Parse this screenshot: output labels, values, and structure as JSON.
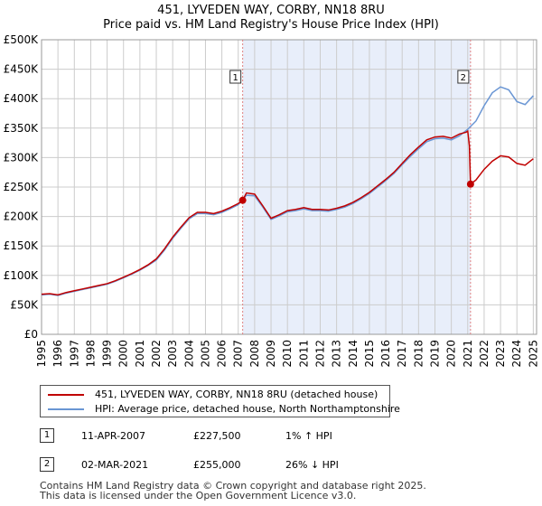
{
  "header": {
    "title": "451, LYVEDEN WAY, CORBY, NN18 8RU",
    "subtitle": "Price paid vs. HM Land Registry's House Price Index (HPI)"
  },
  "colors": {
    "property": "#c00000",
    "hpi": "#6a96d4",
    "shade": "#e8eefa",
    "marker_line": "#e08080",
    "grid": "#cccccc"
  },
  "chart_data": {
    "type": "line",
    "title": "451, LYVEDEN WAY, CORBY, NN18 8RU",
    "subtitle": "Price paid vs. HM Land Registry's House Price Index (HPI)",
    "xlabel": "",
    "ylabel": "",
    "xlim": [
      1995.0,
      2025.2
    ],
    "ylim": [
      0,
      500000
    ],
    "grid": true,
    "x_ticks": [
      1995,
      1996,
      1997,
      1998,
      1999,
      2000,
      2001,
      2002,
      2003,
      2004,
      2005,
      2006,
      2007,
      2008,
      2009,
      2010,
      2011,
      2012,
      2013,
      2014,
      2015,
      2016,
      2017,
      2018,
      2019,
      2020,
      2021,
      2022,
      2023,
      2024,
      2025
    ],
    "y_ticks": [
      0,
      50000,
      100000,
      150000,
      200000,
      250000,
      300000,
      350000,
      400000,
      450000,
      500000
    ],
    "y_tick_labels": [
      "£0",
      "£50K",
      "£100K",
      "£150K",
      "£200K",
      "£250K",
      "£300K",
      "£350K",
      "£400K",
      "£450K",
      "£500K"
    ],
    "shaded_region": [
      2007.27,
      2021.17
    ],
    "series": [
      {
        "name": "451, LYVEDEN WAY, CORBY, NN18 8RU (detached house)",
        "x": [
          1995.0,
          1995.5,
          1996.0,
          1996.5,
          1997.0,
          1997.5,
          1998.0,
          1998.5,
          1999.0,
          1999.5,
          2000.0,
          2000.5,
          2001.0,
          2001.5,
          2002.0,
          2002.5,
          2003.0,
          2003.5,
          2004.0,
          2004.5,
          2005.0,
          2005.5,
          2006.0,
          2006.5,
          2007.0,
          2007.27,
          2007.5,
          2008.0,
          2008.5,
          2009.0,
          2009.5,
          2010.0,
          2010.5,
          2011.0,
          2011.5,
          2012.0,
          2012.5,
          2013.0,
          2013.5,
          2014.0,
          2014.5,
          2015.0,
          2015.5,
          2016.0,
          2016.5,
          2017.0,
          2017.5,
          2018.0,
          2018.5,
          2019.0,
          2019.5,
          2020.0,
          2020.5,
          2020.9,
          2021.0,
          2021.1,
          2021.17,
          2021.5,
          2022.0,
          2022.5,
          2023.0,
          2023.5,
          2024.0,
          2024.5,
          2025.0
        ],
        "values": [
          68000,
          69000,
          67000,
          71000,
          74000,
          77000,
          80000,
          83000,
          86000,
          91000,
          97000,
          103000,
          110000,
          118000,
          128000,
          145000,
          165000,
          182000,
          198000,
          207000,
          207000,
          205000,
          209000,
          215000,
          222000,
          227500,
          240000,
          238000,
          218000,
          197000,
          203000,
          210000,
          212000,
          215000,
          212000,
          212000,
          211000,
          214000,
          218000,
          224000,
          232000,
          241000,
          252000,
          263000,
          275000,
          290000,
          305000,
          318000,
          330000,
          335000,
          336000,
          333000,
          340000,
          343000,
          345000,
          320000,
          255000,
          262000,
          280000,
          294000,
          303000,
          301000,
          290000,
          287000,
          298000
        ]
      },
      {
        "name": "HPI: Average price, detached house, North Northamptonshire",
        "x": [
          1995.0,
          1995.5,
          1996.0,
          1996.5,
          1997.0,
          1997.5,
          1998.0,
          1998.5,
          1999.0,
          1999.5,
          2000.0,
          2000.5,
          2001.0,
          2001.5,
          2002.0,
          2002.5,
          2003.0,
          2003.5,
          2004.0,
          2004.5,
          2005.0,
          2005.5,
          2006.0,
          2006.5,
          2007.0,
          2007.5,
          2008.0,
          2008.5,
          2009.0,
          2009.5,
          2010.0,
          2010.5,
          2011.0,
          2011.5,
          2012.0,
          2012.5,
          2013.0,
          2013.5,
          2014.0,
          2014.5,
          2015.0,
          2015.5,
          2016.0,
          2016.5,
          2017.0,
          2017.5,
          2018.0,
          2018.5,
          2019.0,
          2019.5,
          2020.0,
          2020.5,
          2021.0,
          2021.5,
          2022.0,
          2022.5,
          2023.0,
          2023.5,
          2024.0,
          2024.5,
          2025.0
        ],
        "values": [
          67000,
          68000,
          66000,
          70000,
          73000,
          76000,
          79000,
          82000,
          85000,
          90000,
          96000,
          102000,
          109000,
          117000,
          126000,
          143000,
          163000,
          180000,
          196000,
          205000,
          205000,
          203000,
          207000,
          213000,
          220000,
          236000,
          235000,
          216000,
          195000,
          201000,
          208000,
          210000,
          213000,
          210000,
          210000,
          209000,
          212000,
          216000,
          222000,
          230000,
          239000,
          250000,
          261000,
          273000,
          288000,
          302000,
          315000,
          327000,
          332000,
          333000,
          330000,
          337000,
          348000,
          362000,
          388000,
          410000,
          420000,
          415000,
          395000,
          390000,
          405000
        ]
      }
    ],
    "annotations": [
      {
        "label": "1",
        "x": 2007.27,
        "value": 227500
      },
      {
        "label": "2",
        "x": 2021.17,
        "value": 255000
      }
    ]
  },
  "legend": {
    "items": [
      {
        "label": "451, LYVEDEN WAY, CORBY, NN18 8RU (detached house)"
      },
      {
        "label": "HPI: Average price, detached house, North Northamptonshire"
      }
    ]
  },
  "sales": [
    {
      "num": "1",
      "date": "11-APR-2007",
      "price": "£227,500",
      "hpi": "1% ↑ HPI"
    },
    {
      "num": "2",
      "date": "02-MAR-2021",
      "price": "£255,000",
      "hpi": "26% ↓ HPI"
    }
  ],
  "footer": {
    "line1": "Contains HM Land Registry data © Crown copyright and database right 2025.",
    "line2": "This data is licensed under the Open Government Licence v3.0."
  }
}
